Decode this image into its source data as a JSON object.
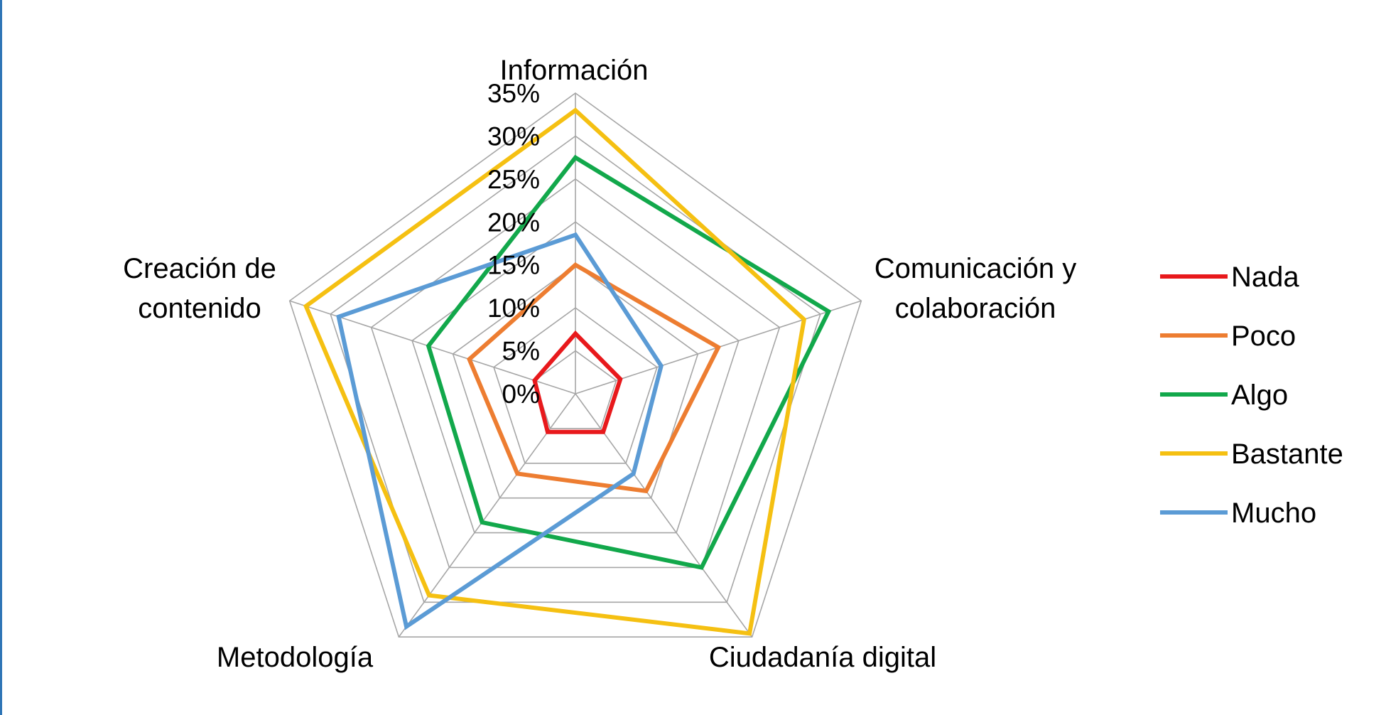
{
  "chart_data": {
    "type": "radar",
    "title": "",
    "axes": [
      "Información",
      "Comunicación y colaboración",
      "Ciudadanía digital",
      "Metodología",
      "Creación de contenido"
    ],
    "axis_label_lines": [
      [
        "Información"
      ],
      [
        "Comunicación y",
        "colaboración"
      ],
      [
        "Ciudadanía digital"
      ],
      [
        "Metodología"
      ],
      [
        "Creación de",
        "contenido"
      ]
    ],
    "rlim": [
      0,
      35
    ],
    "tick_labels": [
      "0%",
      "5%",
      "10%",
      "15%",
      "20%",
      "25%",
      "30%",
      "35%"
    ],
    "tick_values": [
      0,
      5,
      10,
      15,
      20,
      25,
      30,
      35
    ],
    "grid_values": [
      5,
      10,
      15,
      20,
      25,
      30,
      35
    ],
    "legend_position": "right",
    "series": [
      {
        "name": "Nada",
        "color": "#e8191c",
        "values": [
          7,
          5.5,
          5.5,
          5.5,
          5
        ]
      },
      {
        "name": "Poco",
        "color": "#ed7d31",
        "values": [
          15,
          17.5,
          14,
          11.5,
          13
        ]
      },
      {
        "name": "Algo",
        "color": "#12a84b",
        "values": [
          27.5,
          31,
          25,
          18.5,
          18
        ]
      },
      {
        "name": "Bastante",
        "color": "#f5c012",
        "values": [
          33,
          28,
          34.5,
          29,
          33
        ]
      },
      {
        "name": "Mucho",
        "color": "#5b9bd5",
        "values": [
          18.5,
          10.5,
          11.5,
          33.5,
          29
        ]
      }
    ]
  }
}
